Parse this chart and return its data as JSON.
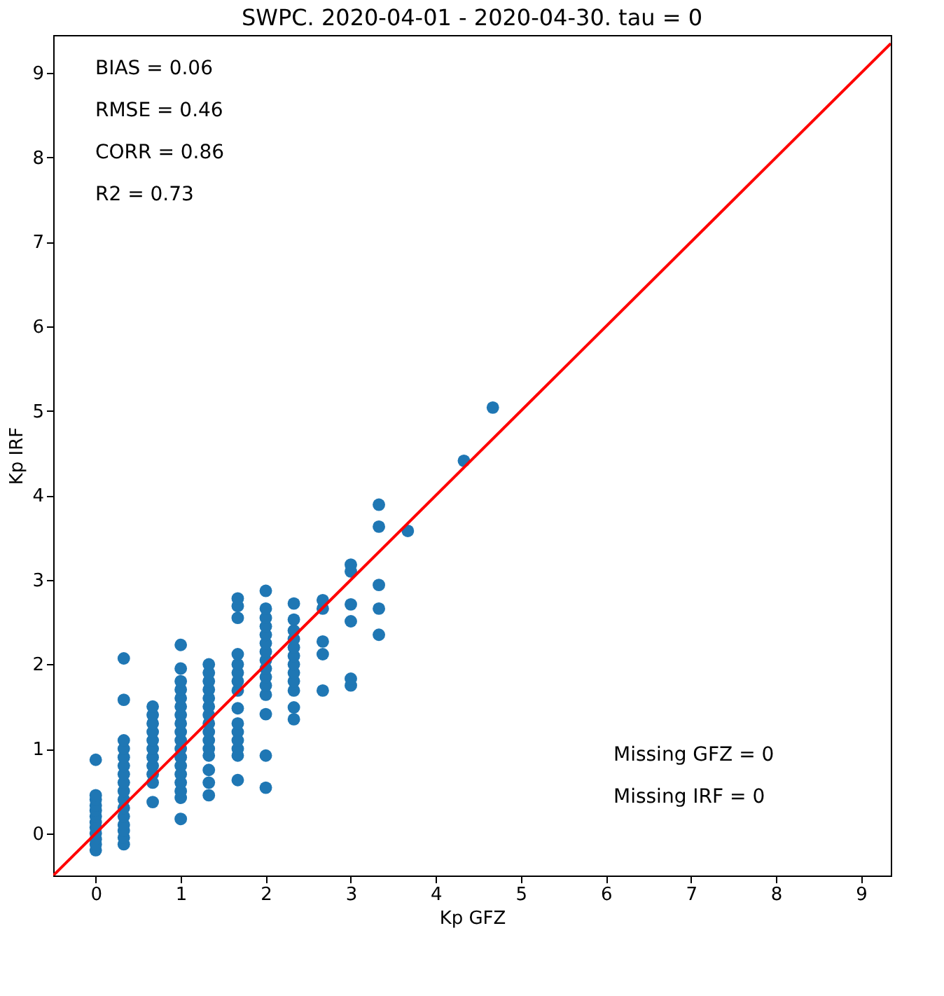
{
  "chart_data": {
    "type": "scatter",
    "title": "SWPC. 2020-04-01 - 2020-04-30. tau = 0",
    "xlabel": "Kp GFZ",
    "ylabel": "Kp IRF",
    "xlim": [
      -0.5,
      9.35
    ],
    "ylim": [
      -0.5,
      9.45
    ],
    "xticks": [
      0,
      1,
      2,
      3,
      4,
      5,
      6,
      7,
      8,
      9
    ],
    "yticks": [
      0,
      1,
      2,
      3,
      4,
      5,
      6,
      7,
      8,
      9
    ],
    "grid": false,
    "annotations": [
      "BIAS = 0.06",
      "RMSE = 0.46",
      "CORR = 0.86",
      "R2 = 0.73",
      "Missing GFZ = 0",
      "Missing IRF = 0"
    ],
    "series": [
      {
        "marker": "circle",
        "color": "#1f77b4",
        "x": [
          0,
          0,
          0,
          0,
          0,
          0,
          0,
          0,
          0,
          0,
          0,
          0,
          0.33,
          0.33,
          0.33,
          0.33,
          0.33,
          0.33,
          0.33,
          0.33,
          0.33,
          0.33,
          0.33,
          0.33,
          0.33,
          0.33,
          0.33,
          0.33,
          0.67,
          0.67,
          0.67,
          0.67,
          0.67,
          0.67,
          0.67,
          0.67,
          0.67,
          0.67,
          0.67,
          1,
          1,
          1,
          1,
          1,
          1,
          1,
          1,
          1,
          1,
          1,
          1,
          1,
          1,
          1,
          1,
          1,
          1,
          1.33,
          1.33,
          1.33,
          1.33,
          1.33,
          1.33,
          1.33,
          1.33,
          1.33,
          1.33,
          1.33,
          1.33,
          1.33,
          1.33,
          1.33,
          1.67,
          1.67,
          1.67,
          1.67,
          1.67,
          1.67,
          1.67,
          1.67,
          1.67,
          1.67,
          1.67,
          1.67,
          1.67,
          1.67,
          1.67,
          2,
          2,
          2,
          2,
          2,
          2,
          2,
          2,
          2,
          2,
          2,
          2,
          2,
          2,
          2,
          2.33,
          2.33,
          2.33,
          2.33,
          2.33,
          2.33,
          2.33,
          2.33,
          2.33,
          2.33,
          2.33,
          2.33,
          2.67,
          2.67,
          2.67,
          2.67,
          2.67,
          3,
          3,
          3,
          3,
          3,
          3,
          3.33,
          3.33,
          3.33,
          3.33,
          3.33,
          3.67,
          4.33,
          4.67
        ],
        "values": [
          -0.2,
          -0.13,
          -0.07,
          0,
          0.07,
          0.13,
          0.2,
          0.27,
          0.33,
          0.4,
          0.45,
          0.87,
          -0.13,
          -0.05,
          0.03,
          0.1,
          0.2,
          0.3,
          0.4,
          0.5,
          0.6,
          0.7,
          0.8,
          0.9,
          1.0,
          1.1,
          1.58,
          2.07,
          0.37,
          0.6,
          0.7,
          0.8,
          0.9,
          1.0,
          1.1,
          1.2,
          1.3,
          1.4,
          1.5,
          0.17,
          0.42,
          0.5,
          0.6,
          0.7,
          0.8,
          0.9,
          1.0,
          1.1,
          1.2,
          1.3,
          1.4,
          1.5,
          1.6,
          1.7,
          1.8,
          1.95,
          2.23,
          0.45,
          0.6,
          0.75,
          0.92,
          1.0,
          1.1,
          1.2,
          1.3,
          1.4,
          1.5,
          1.6,
          1.7,
          1.8,
          1.9,
          2.0,
          0.63,
          0.92,
          1.0,
          1.1,
          1.2,
          1.3,
          1.48,
          1.69,
          1.8,
          1.9,
          2.0,
          2.12,
          2.55,
          2.69,
          2.78,
          0.54,
          0.92,
          1.41,
          1.64,
          1.75,
          1.85,
          1.95,
          2.05,
          2.15,
          2.25,
          2.35,
          2.45,
          2.55,
          2.66,
          2.87,
          1.35,
          1.49,
          1.69,
          1.8,
          1.9,
          2.0,
          2.1,
          2.2,
          2.3,
          2.4,
          2.53,
          2.72,
          1.69,
          2.12,
          2.27,
          2.66,
          2.76,
          1.75,
          1.83,
          2.51,
          2.71,
          3.1,
          3.18,
          2.35,
          2.66,
          2.94,
          3.63,
          3.89,
          3.58,
          4.41,
          5.04
        ]
      },
      {
        "type": "line",
        "color": "#ff0000",
        "x": [
          -0.5,
          9.35
        ],
        "values": [
          -0.5,
          9.35
        ]
      }
    ]
  }
}
